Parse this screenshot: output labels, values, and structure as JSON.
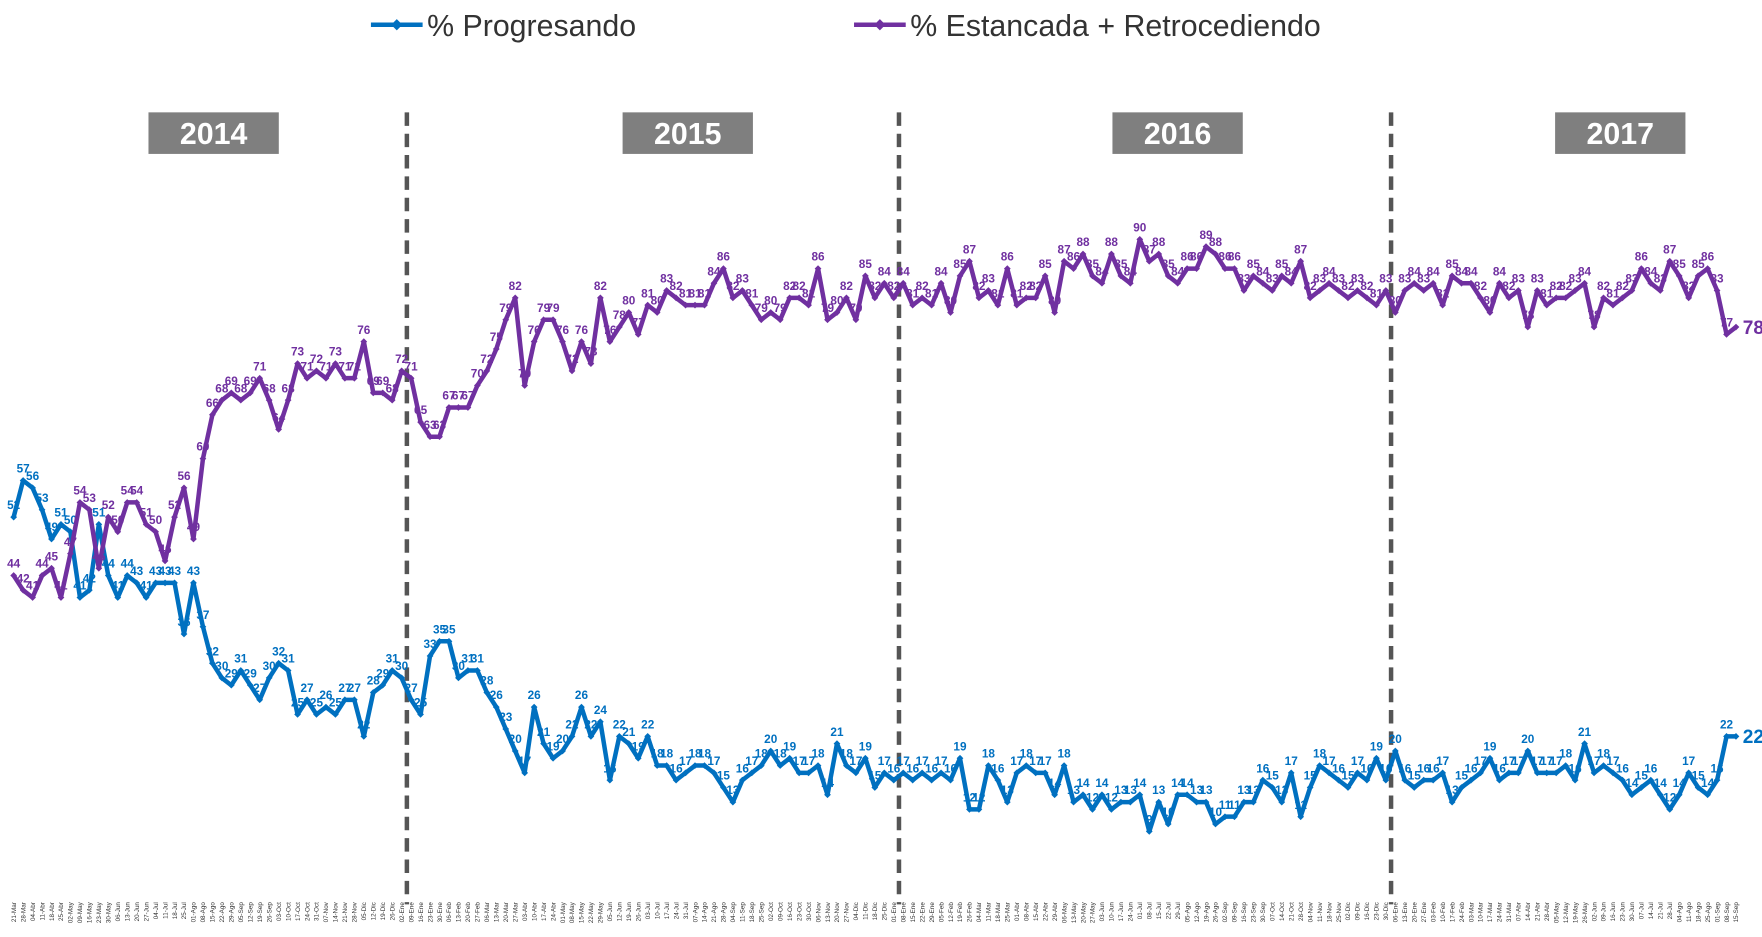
{
  "chart_data": {
    "type": "line",
    "categories": [
      "21-Mar",
      "28-Mar",
      "04-Abr",
      "11-Abr",
      "18-Abr",
      "25-Abr",
      "02-May",
      "09-May",
      "16-May",
      "23-May",
      "30-May",
      "06-Jun",
      "13-Jun",
      "20-Jun",
      "27-Jun",
      "04-Jul",
      "11-Jul",
      "18-Jul",
      "25-Jul",
      "01-Ago",
      "08-Ago",
      "15-Ago",
      "22-Ago",
      "29-Ago",
      "05-Sep",
      "12-Sep",
      "19-Sep",
      "26-Sep",
      "03-Oct",
      "10-Oct",
      "17-Oct",
      "24-Oct",
      "31-Oct",
      "07-Nov",
      "14-Nov",
      "21-Nov",
      "28-Nov",
      "05-Dic",
      "12-Dic",
      "19-Dic",
      "26-Dic",
      "02-Ene",
      "09-Ene",
      "16-Ene",
      "23-Ene",
      "30-Ene",
      "06-Feb",
      "13-Feb",
      "20-Feb",
      "27-Feb",
      "06-Mar",
      "13-Mar",
      "20-Mar",
      "27-Mar",
      "03-Abr",
      "10-Abr",
      "17-Abr",
      "24-Abr",
      "01-May",
      "08-May",
      "15-May",
      "22-May",
      "29-May",
      "05-Jun",
      "12-Jun",
      "19-Jun",
      "26-Jun",
      "03-Jul",
      "10-Jul",
      "17-Jul",
      "24-Jul",
      "31-Jul",
      "07-Ago",
      "14-Ago",
      "21-Ago",
      "28-Ago",
      "04-Sep",
      "11-Sep",
      "18-Sep",
      "25-Sep",
      "02-Oct",
      "09-Oct",
      "16-Oct",
      "23-Oct",
      "30-Oct",
      "06-Nov",
      "13-Nov",
      "20-Nov",
      "27-Nov",
      "04-Dic",
      "11-Dic",
      "18-Dic",
      "25-Dic",
      "01-Ene",
      "08-Ene",
      "15-Ene",
      "22-Ene",
      "29-Ene",
      "05-Feb",
      "12-Feb",
      "19-Feb",
      "26-Feb",
      "04-Mar",
      "11-Mar",
      "18-Mar",
      "25-Mar",
      "01-Abr",
      "08-Abr",
      "15-Abr",
      "22-Abr",
      "29-Abr",
      "06-May",
      "13-May",
      "20-May",
      "27-May",
      "03-Jun",
      "10-Jun",
      "17-Jun",
      "24-Jun",
      "01-Jul",
      "08-Jul",
      "15-Jul",
      "22-Jul",
      "29-Jul",
      "05-Ago",
      "12-Ago",
      "19-Ago",
      "26-Ago",
      "02-Sep",
      "09-Sep",
      "16-Sep",
      "23-Sep",
      "30-Sep",
      "07-Oct",
      "14-Oct",
      "21-Oct",
      "28-Oct",
      "04-Nov",
      "11-Nov",
      "18-Nov",
      "25-Nov",
      "02-Dic",
      "09-Dic",
      "16-Dic",
      "23-Dic",
      "30-Dic",
      "06-Ene",
      "13-Ene",
      "20-Ene",
      "27-Ene",
      "03-Feb",
      "10-Feb",
      "17-Feb",
      "24-Feb",
      "03-Mar",
      "10-Mar",
      "17-Mar",
      "24-Mar",
      "31-Mar",
      "07-Abr",
      "14-Abr",
      "21-Abr",
      "28-Abr",
      "05-May",
      "12-May",
      "19-May",
      "26-May",
      "02-Jun",
      "09-Jun",
      "16-Jun",
      "23-Jun",
      "30-Jun",
      "07-Jul",
      "14-Jul",
      "21-Jul",
      "28-Jul",
      "04-Ago",
      "11-Ago",
      "18-Ago",
      "25-Ago",
      "01-Sep",
      "08-Sep",
      "15-Sep"
    ],
    "series": [
      {
        "name": "% Progresando",
        "color": "#0070c0",
        "values": [
          52,
          57,
          56,
          53,
          49,
          51,
          50,
          41,
          42,
          51,
          44,
          41,
          44,
          43,
          41,
          43,
          43,
          43,
          36,
          43,
          37,
          32,
          30,
          29,
          31,
          29,
          27,
          30,
          32,
          31,
          25,
          27,
          25,
          26,
          25,
          27,
          27,
          22,
          28,
          29,
          31,
          30,
          27,
          25,
          33,
          35,
          35,
          30,
          31,
          31,
          28,
          26,
          23,
          20,
          17,
          26,
          21,
          19,
          20,
          22,
          26,
          22,
          24,
          16,
          22,
          21,
          19,
          22,
          18,
          18,
          16,
          17,
          18,
          18,
          17,
          15,
          13,
          16,
          17,
          18,
          20,
          18,
          19,
          17,
          17,
          18,
          14,
          21,
          18,
          17,
          19,
          15,
          17,
          16,
          17,
          16,
          17,
          16,
          17,
          16,
          19,
          12,
          12,
          18,
          16,
          13,
          17,
          18,
          17,
          17,
          14,
          18,
          13,
          14,
          12,
          14,
          12,
          13,
          13,
          14,
          9,
          13,
          10,
          14,
          14,
          13,
          13,
          10,
          11,
          11,
          13,
          13,
          16,
          15,
          13,
          17,
          11,
          15,
          18,
          17,
          16,
          15,
          17,
          16,
          19,
          16,
          20,
          16,
          15,
          16,
          16,
          17,
          13,
          15,
          16,
          17,
          19,
          16,
          17,
          17,
          20,
          17,
          17,
          17,
          18,
          16,
          21,
          17,
          18,
          17,
          16,
          14,
          15,
          16,
          14,
          12,
          14,
          17,
          15,
          14,
          16,
          22,
          22
        ]
      },
      {
        "name": "% Estancada + Retrocediendo",
        "color": "#7030a0",
        "values": [
          44,
          42,
          41,
          44,
          45,
          41,
          47,
          54,
          53,
          45,
          52,
          50,
          54,
          54,
          51,
          50,
          46,
          52,
          56,
          49,
          60,
          66,
          68,
          69,
          68,
          69,
          71,
          68,
          64,
          68,
          73,
          71,
          72,
          71,
          73,
          71,
          71,
          76,
          69,
          69,
          68,
          72,
          71,
          65,
          63,
          63,
          67,
          67,
          67,
          70,
          72,
          75,
          79,
          82,
          70,
          76,
          79,
          79,
          76,
          72,
          76,
          73,
          82,
          76,
          78,
          80,
          77,
          81,
          80,
          83,
          82,
          81,
          81,
          81,
          84,
          86,
          82,
          83,
          81,
          79,
          80,
          79,
          82,
          82,
          81,
          86,
          79,
          80,
          82,
          79,
          85,
          82,
          84,
          82,
          84,
          81,
          82,
          81,
          84,
          80,
          85,
          87,
          82,
          83,
          81,
          86,
          81,
          82,
          82,
          85,
          80,
          87,
          86,
          88,
          85,
          84,
          88,
          85,
          84,
          90,
          87,
          88,
          85,
          84,
          86,
          86,
          89,
          88,
          86,
          86,
          83,
          85,
          84,
          83,
          85,
          84,
          87,
          82,
          83,
          84,
          83,
          82,
          83,
          82,
          81,
          83,
          80,
          83,
          84,
          83,
          84,
          81,
          85,
          84,
          84,
          82,
          80,
          84,
          82,
          83,
          78,
          83,
          81,
          82,
          82,
          83,
          84,
          78,
          82,
          81,
          82,
          83,
          86,
          84,
          83,
          87,
          85,
          82,
          85,
          86,
          83,
          77,
          78
        ]
      }
    ],
    "ylim": [
      0,
      100
    ],
    "annotations": [
      "2014",
      "2015",
      "2016",
      "2017"
    ]
  }
}
